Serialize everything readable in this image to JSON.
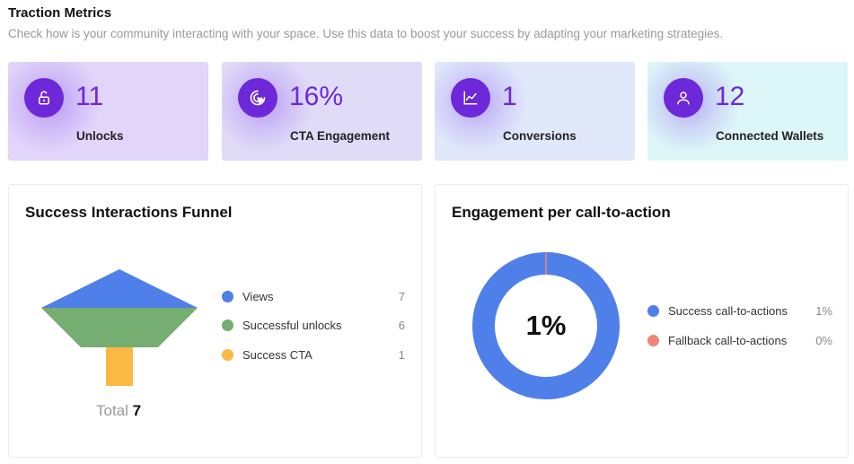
{
  "header": {
    "title": "Traction Metrics",
    "subtitle": "Check how is your community interacting with your space. Use this data to boost your success by adapting your marketing strategies."
  },
  "kpis": [
    {
      "value": "11",
      "label": "Unlocks",
      "icon": "unlock-icon",
      "bg": "#e1d5fa"
    },
    {
      "value": "16%",
      "label": "CTA Engagement",
      "icon": "cursor-click-icon",
      "bg": "#e0dcf8"
    },
    {
      "value": "1",
      "label": "Conversions",
      "icon": "chart-line-icon",
      "bg": "#e0e8fa"
    },
    {
      "value": "12",
      "label": "Connected Wallets",
      "icon": "user-icon",
      "bg": "#ddf6f8"
    }
  ],
  "funnel": {
    "title": "Success Interactions Funnel",
    "total_label": "Total",
    "total_value": "7",
    "items": [
      {
        "label": "Views",
        "value": "7",
        "color": "#4f7fe8"
      },
      {
        "label": "Successful unlocks",
        "value": "6",
        "color": "#76ad70"
      },
      {
        "label": "Success CTA",
        "value": "1",
        "color": "#f9b942"
      }
    ]
  },
  "engagement": {
    "title": "Engagement per call-to-action",
    "center_label": "1%",
    "items": [
      {
        "label": "Success call-to-actions",
        "value": "1%",
        "color": "#4f7fe8"
      },
      {
        "label": "Fallback call-to-actions",
        "value": "0%",
        "color": "#f0857a"
      }
    ]
  },
  "chart_data": [
    {
      "type": "funnel",
      "title": "Success Interactions Funnel",
      "categories": [
        "Views",
        "Successful unlocks",
        "Success CTA"
      ],
      "values": [
        7,
        6,
        1
      ]
    },
    {
      "type": "pie",
      "title": "Engagement per call-to-action",
      "categories": [
        "Success call-to-actions",
        "Fallback call-to-actions"
      ],
      "values": [
        1,
        0
      ]
    }
  ]
}
